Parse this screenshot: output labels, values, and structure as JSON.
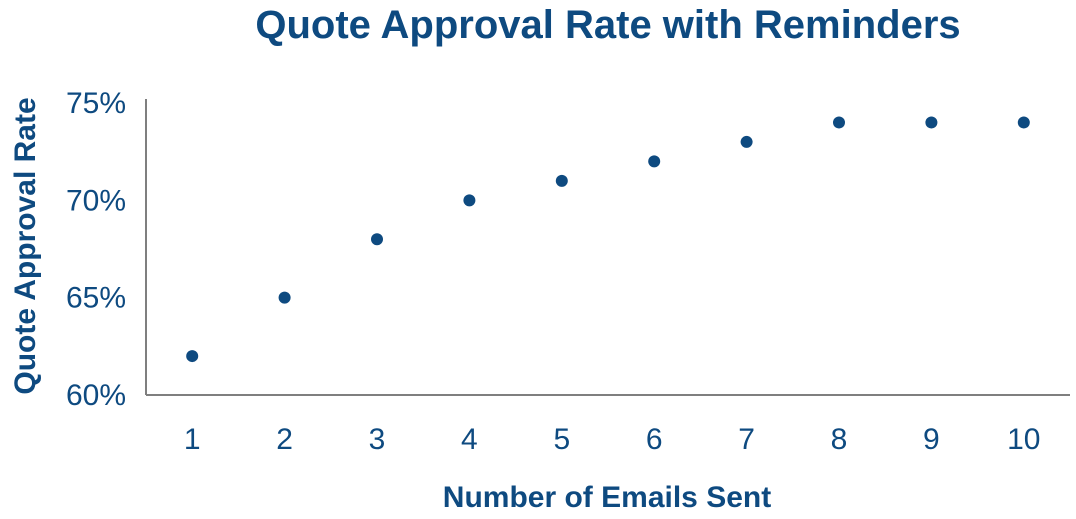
{
  "colors": {
    "primary": "#0e4a80",
    "axis": "#7f7f7f"
  },
  "chart_data": {
    "type": "scatter",
    "title": "Quote Approval Rate with Reminders",
    "xlabel": "Number of Emails Sent",
    "ylabel": "Quote Approval Rate",
    "x": [
      1,
      2,
      3,
      4,
      5,
      6,
      7,
      8,
      9,
      10
    ],
    "y": [
      0.62,
      0.65,
      0.68,
      0.7,
      0.71,
      0.72,
      0.73,
      0.74,
      0.74,
      0.74
    ],
    "x_tick_labels": [
      "1",
      "2",
      "3",
      "4",
      "5",
      "6",
      "7",
      "8",
      "9",
      "10"
    ],
    "y_ticks": [
      0.6,
      0.65,
      0.7,
      0.75
    ],
    "y_tick_labels": [
      "60%",
      "65%",
      "70%",
      "75%"
    ],
    "ylim": [
      0.6,
      0.75
    ],
    "xlim": [
      0.5,
      10.5
    ],
    "grid": false,
    "legend": "none"
  }
}
